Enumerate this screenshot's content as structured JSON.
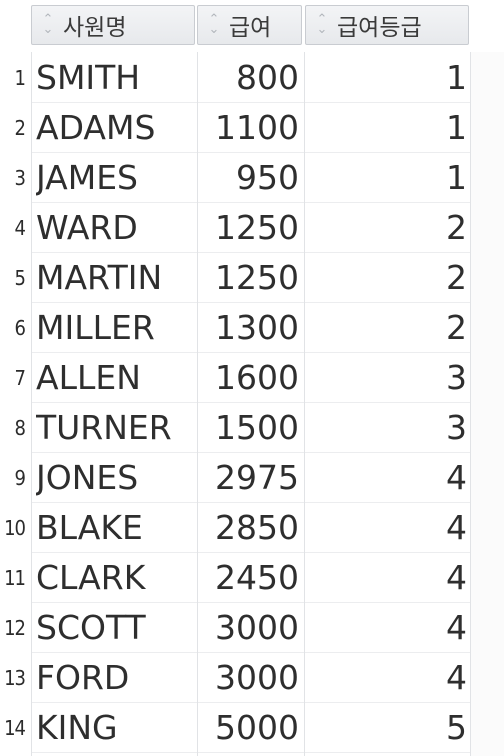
{
  "table": {
    "columns": [
      {
        "label": "사원명"
      },
      {
        "label": "급여"
      },
      {
        "label": "급여등급"
      }
    ],
    "rows": [
      {
        "num": "1",
        "name": "SMITH",
        "salary": "800",
        "grade": "1"
      },
      {
        "num": "2",
        "name": "ADAMS",
        "salary": "1100",
        "grade": "1"
      },
      {
        "num": "3",
        "name": "JAMES",
        "salary": "950",
        "grade": "1"
      },
      {
        "num": "4",
        "name": "WARD",
        "salary": "1250",
        "grade": "2"
      },
      {
        "num": "5",
        "name": "MARTIN",
        "salary": "1250",
        "grade": "2"
      },
      {
        "num": "6",
        "name": "MILLER",
        "salary": "1300",
        "grade": "2"
      },
      {
        "num": "7",
        "name": "ALLEN",
        "salary": "1600",
        "grade": "3"
      },
      {
        "num": "8",
        "name": "TURNER",
        "salary": "1500",
        "grade": "3"
      },
      {
        "num": "9",
        "name": "JONES",
        "salary": "2975",
        "grade": "4"
      },
      {
        "num": "10",
        "name": "BLAKE",
        "salary": "2850",
        "grade": "4"
      },
      {
        "num": "11",
        "name": "CLARK",
        "salary": "2450",
        "grade": "4"
      },
      {
        "num": "12",
        "name": "SCOTT",
        "salary": "3000",
        "grade": "4"
      },
      {
        "num": "13",
        "name": "FORD",
        "salary": "3000",
        "grade": "4"
      },
      {
        "num": "14",
        "name": "KING",
        "salary": "5000",
        "grade": "5"
      }
    ]
  },
  "icons": {
    "sort": "sort-arrows-icon"
  }
}
